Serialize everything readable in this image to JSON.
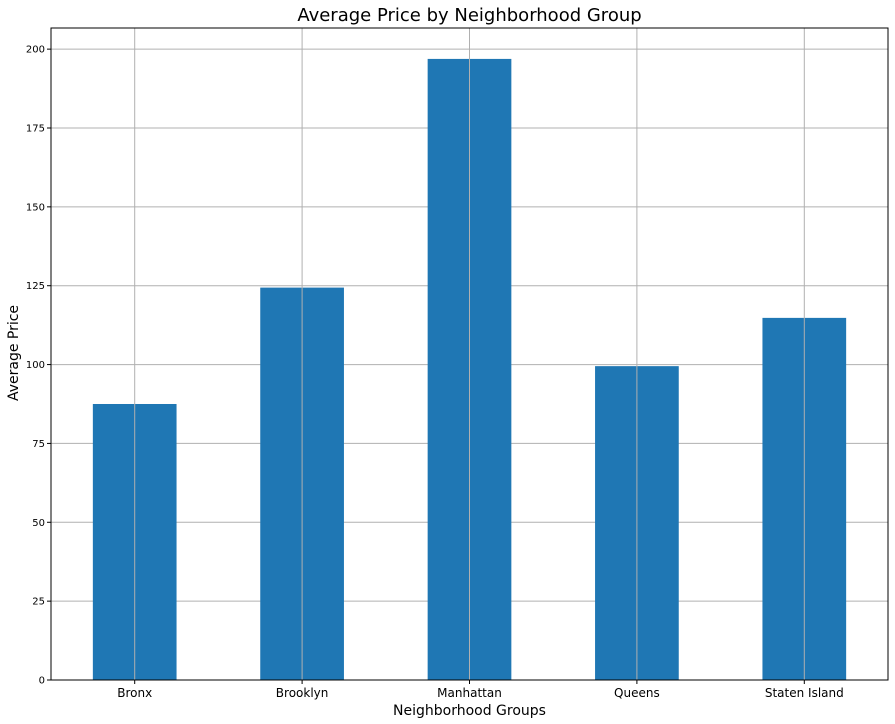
{
  "chart_data": {
    "type": "bar",
    "title": "Average Price by Neighborhood Group",
    "xlabel": "Neighborhood Groups",
    "ylabel": "Average Price",
    "categories": [
      "Bronx",
      "Brooklyn",
      "Manhattan",
      "Queens",
      "Staten Island"
    ],
    "values": [
      87.5,
      124.4,
      196.9,
      99.5,
      114.8
    ],
    "ylim": [
      0,
      206.7
    ],
    "yticks": [
      "0",
      "25",
      "50",
      "75",
      "100",
      "125",
      "150",
      "175",
      "200"
    ],
    "grid": true,
    "legend": "none",
    "bar_color": "#1f77b4",
    "grid_color": "#b0b0b0"
  }
}
